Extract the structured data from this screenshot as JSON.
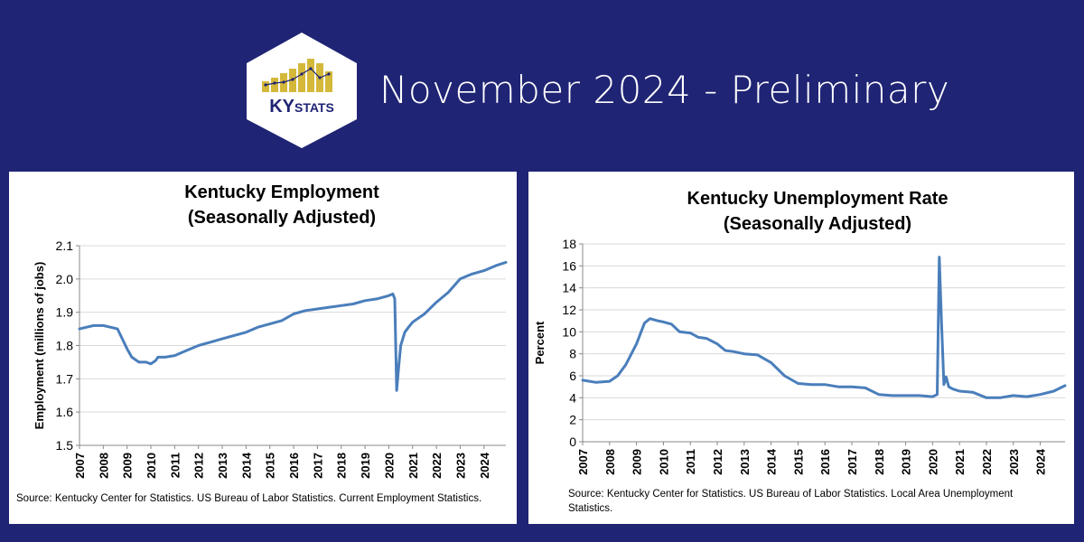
{
  "header": {
    "logo_text_ky": "KY",
    "logo_text_stats": "STATS",
    "headline": "November 2024 - Preliminary"
  },
  "colors": {
    "background": "#1f2474",
    "line": "#4a7ebb",
    "logo_gold": "#d4b83a",
    "logo_navy": "#1f2474"
  },
  "chart_data": [
    {
      "type": "line",
      "title": "Kentucky Employment",
      "subtitle": "(Seasonally Adjusted)",
      "ylabel": "Employment (millions of jobs)",
      "xlabel": "",
      "ylim": [
        1.5,
        2.1
      ],
      "yticks": [
        "1.5",
        "1.6",
        "1.7",
        "1.8",
        "1.9",
        "2.0",
        "2.1"
      ],
      "xlim": [
        2007,
        2024.92
      ],
      "xticks": [
        "2007",
        "2008",
        "2009",
        "2010",
        "2011",
        "2012",
        "2013",
        "2014",
        "2015",
        "2016",
        "2017",
        "2018",
        "2019",
        "2020",
        "2021",
        "2022",
        "2023",
        "2024"
      ],
      "grid": "horizontal",
      "legend": "none",
      "source": "Source: Kentucky Center for Statistics. US Bureau of Labor Statistics. Current Employment Statistics.",
      "series": [
        {
          "x": [
            2007.0,
            2007.3,
            2007.6,
            2008.0,
            2008.3,
            2008.6,
            2008.8,
            2009.0,
            2009.2,
            2009.5,
            2009.8,
            2010.0,
            2010.2,
            2010.3,
            2010.6,
            2011.0,
            2011.5,
            2012.0,
            2012.5,
            2013.0,
            2013.5,
            2014.0,
            2014.5,
            2015.0,
            2015.5,
            2016.0,
            2016.5,
            2017.0,
            2017.5,
            2018.0,
            2018.5,
            2019.0,
            2019.5,
            2020.0,
            2020.17,
            2020.25,
            2020.33,
            2020.42,
            2020.5,
            2020.67,
            2020.83,
            2021.0,
            2021.5,
            2022.0,
            2022.5,
            2023.0,
            2023.5,
            2024.0,
            2024.5,
            2024.92
          ],
          "y": [
            1.85,
            1.855,
            1.86,
            1.86,
            1.855,
            1.85,
            1.82,
            1.79,
            1.765,
            1.75,
            1.75,
            1.745,
            1.755,
            1.765,
            1.765,
            1.77,
            1.785,
            1.8,
            1.81,
            1.82,
            1.83,
            1.84,
            1.855,
            1.865,
            1.875,
            1.895,
            1.905,
            1.91,
            1.915,
            1.92,
            1.925,
            1.935,
            1.94,
            1.95,
            1.955,
            1.94,
            1.665,
            1.74,
            1.8,
            1.84,
            1.855,
            1.87,
            1.895,
            1.93,
            1.96,
            2.0,
            2.015,
            2.025,
            2.04,
            2.05
          ]
        }
      ]
    },
    {
      "type": "line",
      "title": "Kentucky Unemployment Rate",
      "subtitle": "(Seasonally Adjusted)",
      "ylabel": "Percent",
      "xlabel": "",
      "ylim": [
        0,
        18
      ],
      "yticks": [
        "0",
        "2",
        "4",
        "6",
        "8",
        "10",
        "12",
        "14",
        "16",
        "18"
      ],
      "xlim": [
        2007,
        2024.92
      ],
      "xticks": [
        "2007",
        "2008",
        "2009",
        "2010",
        "2011",
        "2012",
        "2013",
        "2014",
        "2015",
        "2016",
        "2017",
        "2018",
        "2019",
        "2020",
        "2021",
        "2022",
        "2023",
        "2024"
      ],
      "grid": "horizontal",
      "legend": "none",
      "source": "Source: Kentucky Center for Statistics. US Bureau of Labor Statistics. Local Area Unemployment Statistics.",
      "series": [
        {
          "x": [
            2007.0,
            2007.5,
            2008.0,
            2008.3,
            2008.6,
            2009.0,
            2009.3,
            2009.5,
            2009.8,
            2010.0,
            2010.3,
            2010.6,
            2011.0,
            2011.3,
            2011.6,
            2012.0,
            2012.3,
            2012.6,
            2013.0,
            2013.5,
            2014.0,
            2014.5,
            2015.0,
            2015.5,
            2016.0,
            2016.5,
            2017.0,
            2017.5,
            2018.0,
            2018.5,
            2019.0,
            2019.5,
            2020.0,
            2020.17,
            2020.25,
            2020.33,
            2020.42,
            2020.5,
            2020.6,
            2020.75,
            2021.0,
            2021.5,
            2022.0,
            2022.5,
            2023.0,
            2023.5,
            2024.0,
            2024.5,
            2024.92
          ],
          "y": [
            5.6,
            5.4,
            5.5,
            6.0,
            7.0,
            8.9,
            10.8,
            11.2,
            11.0,
            10.9,
            10.7,
            10.0,
            9.9,
            9.5,
            9.4,
            8.9,
            8.3,
            8.2,
            8.0,
            7.9,
            7.2,
            6.0,
            5.3,
            5.2,
            5.2,
            5.0,
            5.0,
            4.9,
            4.3,
            4.2,
            4.2,
            4.2,
            4.1,
            4.3,
            16.8,
            11.0,
            5.2,
            5.9,
            5.0,
            4.8,
            4.6,
            4.5,
            4.0,
            4.0,
            4.2,
            4.1,
            4.3,
            4.6,
            5.1
          ]
        }
      ]
    }
  ]
}
